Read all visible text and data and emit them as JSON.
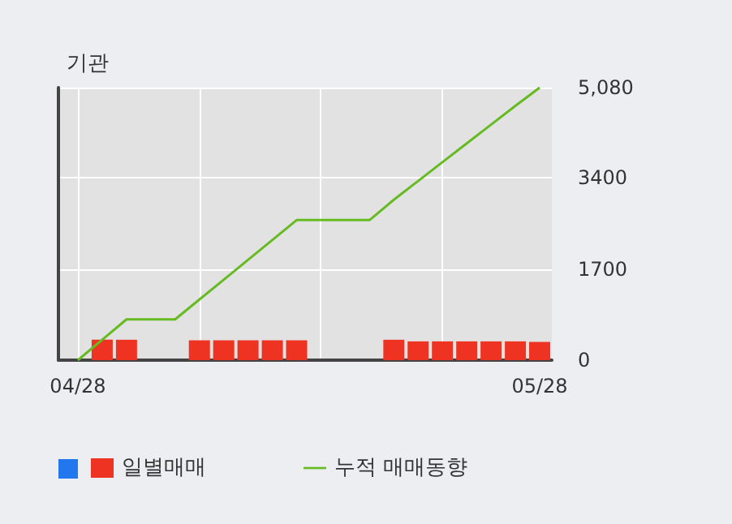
{
  "chart_data": {
    "type": "bar",
    "title": "기관",
    "categories": [
      "04/28",
      null,
      null,
      null,
      null,
      null,
      null,
      null,
      null,
      null,
      null,
      null,
      null,
      null,
      null,
      null,
      null,
      null,
      null,
      "05/28"
    ],
    "series": [
      {
        "name": "일별매매",
        "color": "#ee3322",
        "values": [
          null,
          380,
          380,
          null,
          null,
          370,
          370,
          370,
          370,
          370,
          null,
          null,
          null,
          380,
          350,
          350,
          350,
          350,
          350,
          340
        ]
      },
      {
        "name": "누적 매매동향",
        "type": "line",
        "color": "#66bb22",
        "values": [
          0,
          380,
          760,
          760,
          760,
          1130,
          1500,
          1870,
          2240,
          2610,
          2610,
          2610,
          2610,
          2990,
          3340,
          3690,
          4040,
          4390,
          4740,
          5080
        ]
      }
    ],
    "ylim": [
      0,
      5080
    ],
    "yticks": [
      0,
      1700,
      3400,
      {
        "value": 5080,
        "label": "5,080"
      }
    ],
    "grid": true,
    "legend": "bottom",
    "marker": "none"
  }
}
